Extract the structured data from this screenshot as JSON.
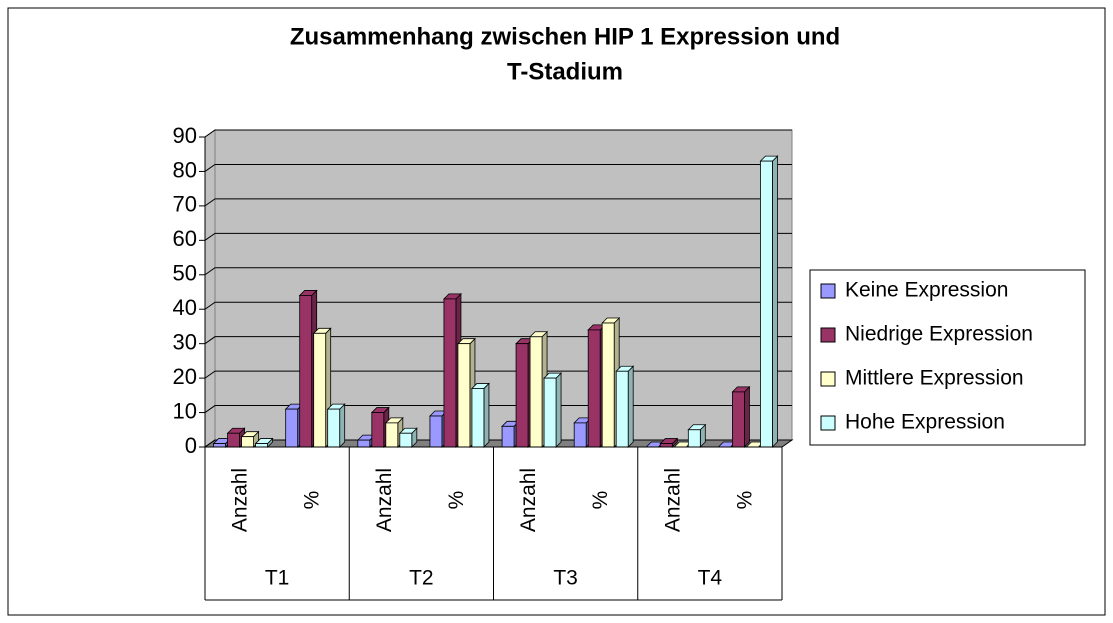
{
  "chart_data": {
    "type": "bar",
    "title": [
      "Zusammenhang zwischen HIP 1 Expression und",
      "T-Stadium"
    ],
    "categories": [
      "Anzahl",
      "%",
      "Anzahl",
      "%",
      "Anzahl",
      "%",
      "Anzahl",
      "%"
    ],
    "groups": [
      "T1",
      "T2",
      "T3",
      "T4"
    ],
    "series": [
      {
        "name": "Keine Expression",
        "color": "#9999ff",
        "values": [
          1,
          11,
          2,
          9,
          6,
          7,
          0,
          0
        ]
      },
      {
        "name": "Niedrige Expression",
        "color": "#993366",
        "values": [
          4,
          44,
          10,
          43,
          30,
          34,
          1,
          16
        ]
      },
      {
        "name": "Mittlere Expression",
        "color": "#ffffcc",
        "values": [
          3,
          33,
          7,
          30,
          32,
          36,
          0,
          0
        ]
      },
      {
        "name": "Hohe Expression",
        "color": "#ccffff",
        "values": [
          1,
          11,
          4,
          17,
          20,
          22,
          5,
          83
        ]
      }
    ],
    "ylim": [
      0,
      90
    ],
    "yticks": [
      0,
      10,
      20,
      30,
      40,
      50,
      60,
      70,
      80,
      90
    ],
    "grid": true
  }
}
